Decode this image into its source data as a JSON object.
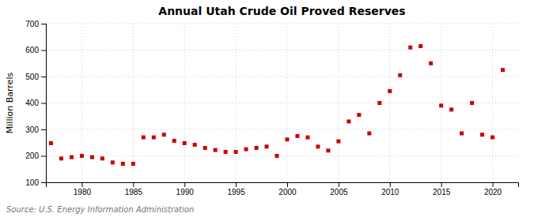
{
  "chart_data": {
    "type": "scatter",
    "title": "Annual Utah Crude Oil Proved Reserves",
    "ylabel": "Million Barrels",
    "source": "Source: U.S. Energy Information Administration",
    "color": "#cc0000",
    "marker": "square",
    "x": [
      1977,
      1978,
      1979,
      1980,
      1981,
      1982,
      1983,
      1984,
      1985,
      1986,
      1987,
      1988,
      1989,
      1990,
      1991,
      1992,
      1993,
      1994,
      1995,
      1996,
      1997,
      1998,
      1999,
      2000,
      2001,
      2002,
      2003,
      2004,
      2005,
      2006,
      2007,
      2008,
      2009,
      2010,
      2011,
      2012,
      2013,
      2014,
      2015,
      2016,
      2017,
      2018,
      2019,
      2020,
      2021
    ],
    "values": [
      248,
      190,
      195,
      200,
      195,
      190,
      175,
      170,
      170,
      270,
      270,
      280,
      257,
      248,
      242,
      230,
      222,
      215,
      215,
      225,
      230,
      235,
      200,
      262,
      275,
      270,
      235,
      220,
      255,
      330,
      355,
      285,
      400,
      445,
      505,
      610,
      615,
      550,
      390,
      375,
      285,
      400,
      280,
      270,
      525
    ],
    "xlim": [
      1976.5,
      2022.5
    ],
    "xticks": [
      1980,
      1985,
      1990,
      1995,
      2000,
      2005,
      2010,
      2015,
      2020
    ],
    "ylim": [
      100,
      700
    ],
    "yticks": [
      100,
      200,
      300,
      400,
      500,
      600,
      700
    ],
    "grid": true
  }
}
